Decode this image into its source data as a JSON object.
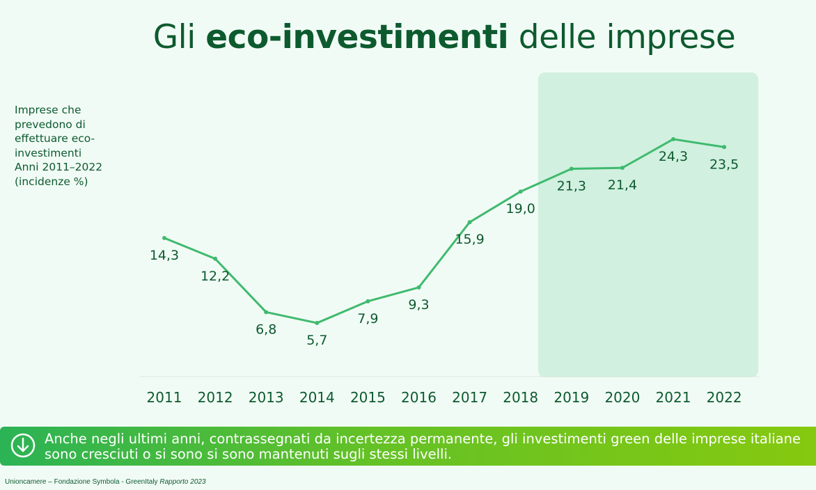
{
  "title": {
    "prefix": "Gli ",
    "bold": "eco-investimenti",
    "suffix": " delle imprese"
  },
  "side_note": {
    "line1": "Imprese che\nprevedono di\neffettuare eco-\ninvestimenti",
    "line2": "Anni 2011–2022",
    "line3": "(incidenze %)"
  },
  "banner": {
    "text": "Anche negli ultimi anni, contrassegnati da incertezza permanente, gli investimenti green delle imprese italiane sono cresciuti o si sono si sono mantenuti sugli stessi livelli.",
    "icon": "arrow-down-circle-icon"
  },
  "source": {
    "main": "Unioncamere – Fondazione Symbola - GreenItaly ",
    "italic": "Rapporto 2023"
  },
  "colors": {
    "line": "#3fba6e",
    "label": "#0d5a2f",
    "highlight": "#d1f0df",
    "background": "#f1fbf5"
  },
  "chart_data": {
    "type": "line",
    "x": [
      "2011",
      "2012",
      "2013",
      "2014",
      "2015",
      "2016",
      "2017",
      "2018",
      "2019",
      "2020",
      "2021",
      "2022"
    ],
    "values": [
      14.3,
      12.2,
      6.8,
      5.7,
      7.9,
      9.3,
      15.9,
      19.0,
      21.3,
      21.4,
      24.3,
      23.5
    ],
    "data_labels": [
      "14,3",
      "12,2",
      "6,8",
      "5,7",
      "7,9",
      "9,3",
      "15,9",
      "19,0",
      "21,3",
      "21,4",
      "24,3",
      "23,5"
    ],
    "highlight_range": [
      "2019",
      "2022"
    ],
    "grid": false,
    "legend": "none"
  }
}
